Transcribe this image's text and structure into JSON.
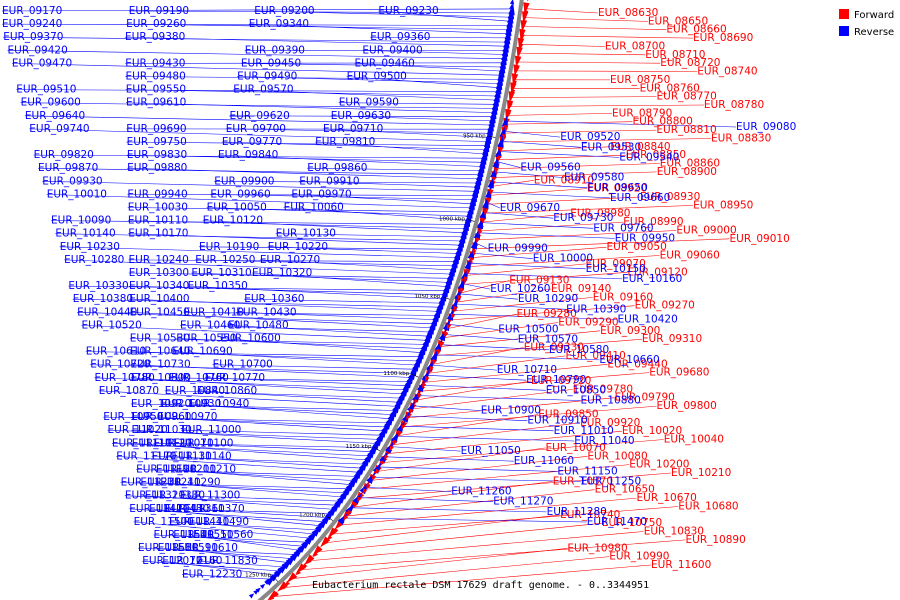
{
  "caption": "Eubacterium rectale DSM 17629 draft genome. - 0..3344951",
  "legend": {
    "forward_label": "Forward",
    "reverse_label": "Reverse",
    "forward_color": "#ff0000",
    "reverse_color": "#0000ff"
  },
  "ticks": [
    "950 kbp",
    "1000 kbp",
    "1050 kbp",
    "1100 kbp",
    "1150 kbp",
    "1200 kbp",
    "1250 kbp"
  ],
  "forward_genes": [
    "EUR_08630",
    "EUR_08650",
    "EUR_08660",
    "EUR_08690",
    "EUR_08700",
    "EUR_08710",
    "EUR_08720",
    "EUR_08740",
    "EUR_08750",
    "EUR_08760",
    "EUR_08770",
    "EUR_08780",
    "EUR_08790",
    "EUR_08800",
    "EUR_08810",
    "EUR_08830",
    "EUR_08840",
    "EUR_08850",
    "EUR_08860",
    "EUR_08900",
    "EUR_08910",
    "EUR_08920",
    "EUR_08930",
    "EUR_08950",
    "EUR_08980",
    "EUR_08990",
    "EUR_09000",
    "EUR_09010",
    "EUR_09050",
    "EUR_09060",
    "EUR_09070",
    "EUR_09120",
    "EUR_09130",
    "EUR_09140",
    "EUR_09160",
    "EUR_09270",
    "EUR_09280",
    "EUR_09290",
    "EUR_09300",
    "EUR_09310",
    "EUR_09330",
    "EUR_09410",
    "EUR_09440",
    "EUR_09680",
    "EUR_09720",
    "EUR_09780",
    "EUR_09790",
    "EUR_09800",
    "EUR_09850",
    "EUR_09920",
    "EUR_10020",
    "EUR_10040",
    "EUR_10070",
    "EUR_10080",
    "EUR_10200",
    "EUR_10210",
    "EUR_10370",
    "EUR_10650",
    "EUR_10670",
    "EUR_10680",
    "EUR_10740",
    "EUR_10750",
    "EUR_10830",
    "EUR_10890",
    "EUR_10980",
    "EUR_10990",
    "EUR_11600"
  ],
  "reverse_genes_right": [
    "EUR_09080",
    "EUR_09520",
    "EUR_09530",
    "EUR_09540",
    "EUR_09560",
    "EUR_09580",
    "EUR_09650",
    "EUR_09660",
    "EUR_09670",
    "EUR_09730",
    "EUR_09760",
    "EUR_09950",
    "EUR_09990",
    "EUR_10000",
    "EUR_10150",
    "EUR_10160",
    "EUR_10260",
    "EUR_10290",
    "EUR_10390",
    "EUR_10420",
    "EUR_10500",
    "EUR_10570",
    "EUR_10580",
    "EUR_10660",
    "EUR_10710",
    "EUR_10790",
    "EUR_10850",
    "EUR_10880",
    "EUR_10900",
    "EUR_10910",
    "EUR_11010",
    "EUR_11040",
    "EUR_11050",
    "EUR_11060",
    "EUR_11150",
    "EUR_11250",
    "EUR_11260",
    "EUR_11270",
    "EUR_11280",
    "EUR_11470"
  ],
  "reverse_genes_left": [
    "EUR_09170",
    "EUR_09190",
    "EUR_09200",
    "EUR_09230",
    "EUR_09240",
    "EUR_09260",
    "EUR_09340",
    "EUR_09360",
    "EUR_09370",
    "EUR_09380",
    "EUR_09390",
    "EUR_09400",
    "EUR_09420",
    "EUR_09430",
    "EUR_09450",
    "EUR_09460",
    "EUR_09470",
    "EUR_09480",
    "EUR_09490",
    "EUR_09500",
    "EUR_09510",
    "EUR_09550",
    "EUR_09570",
    "EUR_09590",
    "EUR_09600",
    "EUR_09610",
    "EUR_09620",
    "EUR_09630",
    "EUR_09640",
    "EUR_09690",
    "EUR_09700",
    "EUR_09710",
    "EUR_09740",
    "EUR_09750",
    "EUR_09770",
    "EUR_09810",
    "EUR_09820",
    "EUR_09830",
    "EUR_09840",
    "EUR_09860",
    "EUR_09870",
    "EUR_09880",
    "EUR_09900",
    "EUR_09910",
    "EUR_09930",
    "EUR_09940",
    "EUR_09960",
    "EUR_09970",
    "EUR_10010",
    "EUR_10030",
    "EUR_10050",
    "EUR_10060",
    "EUR_10090",
    "EUR_10110",
    "EUR_10120",
    "EUR_10130",
    "EUR_10140",
    "EUR_10170",
    "EUR_10190",
    "EUR_10220",
    "EUR_10230",
    "EUR_10240",
    "EUR_10250",
    "EUR_10270",
    "EUR_10280",
    "EUR_10300",
    "EUR_10310",
    "EUR_10320",
    "EUR_10330",
    "EUR_10340",
    "EUR_10350",
    "EUR_10360",
    "EUR_10380",
    "EUR_10400",
    "EUR_10410",
    "EUR_10430",
    "EUR_10440",
    "EUR_10450",
    "EUR_10460",
    "EUR_10480",
    "EUR_10520",
    "EUR_10530",
    "EUR_10550",
    "EUR_10600",
    "EUR_10610",
    "EUR_10640",
    "EUR_10690",
    "EUR_10700",
    "EUR_10720",
    "EUR_10730",
    "EUR_10760",
    "EUR_10770",
    "EUR_10780",
    "EUR_10800",
    "EUR_10840",
    "EUR_10860",
    "EUR_10870",
    "EUR_10920",
    "EUR_10930",
    "EUR_10940",
    "EUR_10950",
    "EUR_10960",
    "EUR_10970",
    "EUR_11000",
    "EUR_11020",
    "EUR_11030",
    "EUR_11070",
    "EUR_11100",
    "EUR_11110",
    "EUR_11120",
    "EUR_11130",
    "EUR_11140",
    "EUR_11170",
    "EUR_11190",
    "EUR_11200",
    "EUR_11210",
    "EUR_11230",
    "EUR_11240",
    "EUR_11290",
    "EUR_11300",
    "EUR_11320",
    "EUR_11330",
    "EUR_11360",
    "EUR_11370",
    "EUR_11420",
    "EUR_11430",
    "EUR_11440",
    "EUR_11490",
    "EUR_11500",
    "EUR_11540",
    "EUR_11550",
    "EUR_11560",
    "EUR_11580",
    "EUR_11590",
    "EUR_11610",
    "EUR_11830",
    "EUR_12070",
    "EUR_12160",
    "EUR_12230"
  ]
}
